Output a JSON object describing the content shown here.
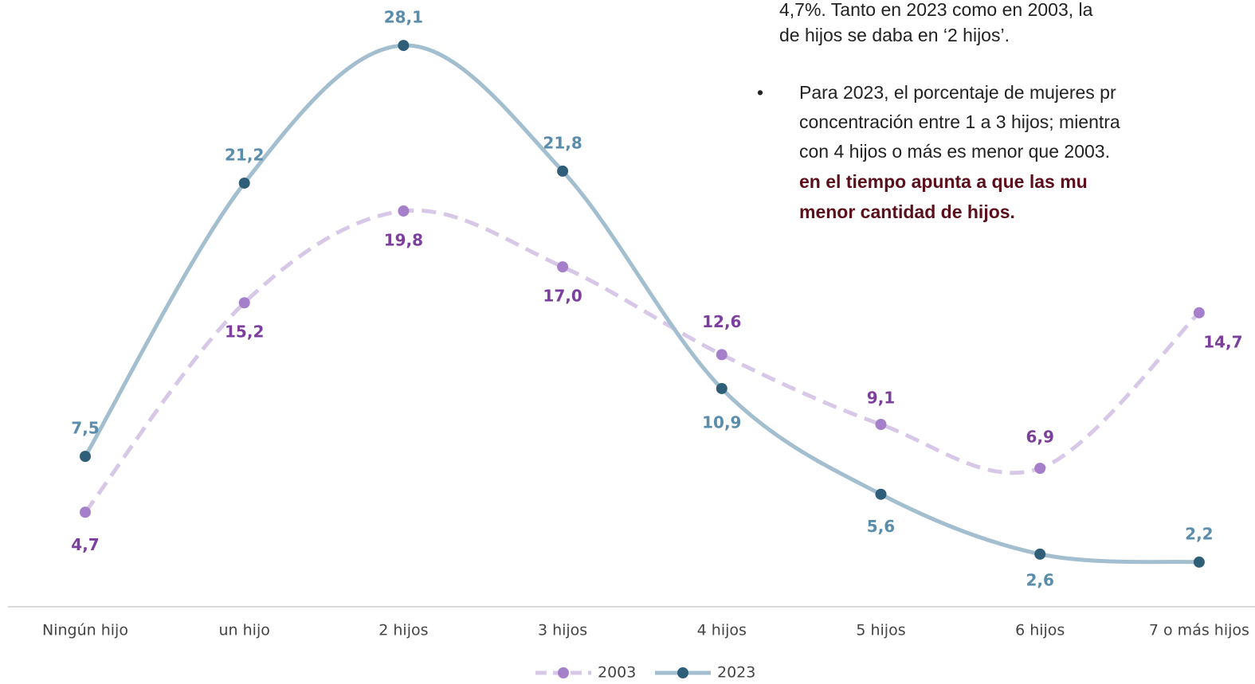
{
  "chart_data": {
    "type": "line",
    "categories": [
      "Ningún hijo",
      "un hijo",
      "2 hijos",
      "3 hijos",
      "4 hijos",
      "5 hijos",
      "6 hijos",
      "7 o más hijos"
    ],
    "series": [
      {
        "name": "2003",
        "color": "#a57fc9",
        "line_color": "#d8c8e8",
        "dashed": true,
        "values": [
          4.7,
          15.2,
          19.8,
          17.0,
          12.6,
          9.1,
          6.9,
          14.7
        ],
        "value_labels": [
          "4,7",
          "15,2",
          "19,8",
          "17,0",
          "12,6",
          "9,1",
          "6,9",
          "14,7"
        ],
        "label_color": "#7d3f9e"
      },
      {
        "name": "2023",
        "color": "#2f5f78",
        "line_color": "#a3bfcf",
        "dashed": false,
        "values": [
          7.5,
          21.2,
          28.1,
          21.8,
          10.9,
          5.6,
          2.6,
          2.2
        ],
        "value_labels": [
          "7,5",
          "21,2",
          "28,1",
          "21,8",
          "10,9",
          "5,6",
          "2,6",
          "2,2"
        ],
        "label_color": "#5a8cab"
      }
    ],
    "legend": "bottom",
    "annotation": {
      "lines": [
        "4,7%. Tanto en 2023 como en 2003, la",
        "de hijos se daba en ‘2 hijos’."
      ],
      "bullet": "•",
      "bullet_lines": [
        "Para 2023, el porcentaje de mujeres pr",
        "concentración entre 1 a 3 hijos; mientra",
        "con 4 hijos o más es menor que 2003."
      ],
      "bold_lines": [
        "en el tiempo apunta a que las mu",
        "menor cantidad de hijos."
      ]
    }
  }
}
